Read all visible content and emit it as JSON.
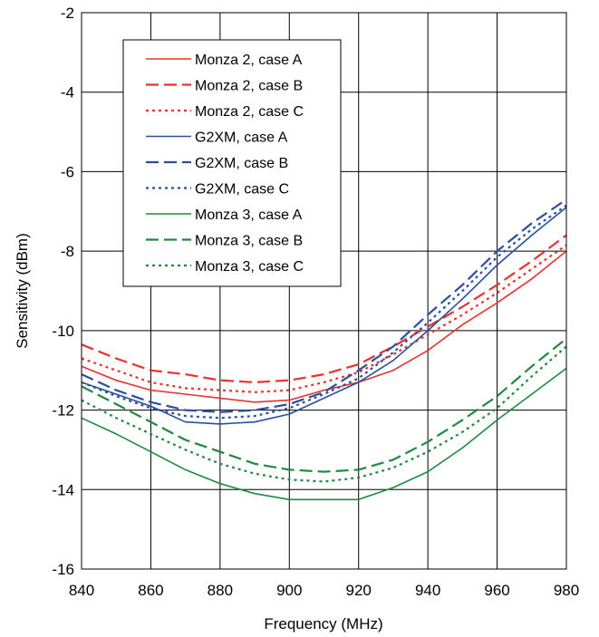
{
  "chart_data": {
    "type": "line",
    "xlabel": "Frequency (MHz)",
    "ylabel": "Sensitivity (dBm)",
    "xlim": [
      840,
      980
    ],
    "ylim": [
      -16,
      -2
    ],
    "xticks": [
      "840",
      "860",
      "880",
      "900",
      "920",
      "940",
      "960",
      "980"
    ],
    "yticks": [
      "-2",
      "-4",
      "-6",
      "-8",
      "-10",
      "-12",
      "-14",
      "-16"
    ],
    "grid": true,
    "legend_position": "top-left",
    "x": [
      840,
      850,
      860,
      870,
      880,
      890,
      900,
      910,
      920,
      930,
      940,
      950,
      960,
      970,
      980
    ],
    "series": [
      {
        "name": "Monza 2, case A",
        "color": "#e8322d",
        "dash": "solid",
        "values": [
          -10.9,
          -11.25,
          -11.5,
          -11.6,
          -11.7,
          -11.8,
          -11.75,
          -11.5,
          -11.3,
          -11.0,
          -10.5,
          -9.85,
          -9.3,
          -8.7,
          -8.0
        ]
      },
      {
        "name": "Monza 2, case B",
        "color": "#e8322d",
        "dash": "long-dash",
        "values": [
          -10.35,
          -10.7,
          -11.0,
          -11.1,
          -11.25,
          -11.3,
          -11.25,
          -11.1,
          -10.85,
          -10.4,
          -9.9,
          -9.4,
          -8.85,
          -8.25,
          -7.6
        ]
      },
      {
        "name": "Monza 2, case C",
        "color": "#e8322d",
        "dash": "dot",
        "values": [
          -10.7,
          -11.0,
          -11.3,
          -11.45,
          -11.5,
          -11.55,
          -11.5,
          -11.3,
          -11.05,
          -10.6,
          -10.1,
          -9.6,
          -9.05,
          -8.45,
          -7.85
        ]
      },
      {
        "name": "G2XM, case A",
        "color": "#2a4f9e",
        "dash": "solid",
        "values": [
          -11.3,
          -11.6,
          -11.9,
          -12.3,
          -12.35,
          -12.3,
          -12.1,
          -11.7,
          -11.3,
          -10.75,
          -10.0,
          -9.2,
          -8.35,
          -7.6,
          -6.9
        ]
      },
      {
        "name": "G2XM, case B",
        "color": "#2a4f9e",
        "dash": "long-dash",
        "values": [
          -11.1,
          -11.5,
          -11.8,
          -12.0,
          -12.05,
          -12.0,
          -11.85,
          -11.55,
          -11.0,
          -10.4,
          -9.6,
          -8.85,
          -8.0,
          -7.3,
          -6.7
        ]
      },
      {
        "name": "G2XM, case C",
        "color": "#2a4f9e",
        "dash": "dot",
        "values": [
          -11.3,
          -11.65,
          -11.95,
          -12.15,
          -12.2,
          -12.15,
          -11.95,
          -11.6,
          -11.2,
          -10.55,
          -9.8,
          -9.0,
          -8.15,
          -7.45,
          -6.85
        ]
      },
      {
        "name": "Monza 3, case A",
        "color": "#1f8a3e",
        "dash": "solid",
        "values": [
          -12.2,
          -12.6,
          -13.05,
          -13.5,
          -13.85,
          -14.1,
          -14.25,
          -14.25,
          -14.25,
          -13.95,
          -13.55,
          -12.95,
          -12.25,
          -11.6,
          -10.95
        ]
      },
      {
        "name": "Monza 3, case B",
        "color": "#1f8a3e",
        "dash": "long-dash",
        "values": [
          -11.4,
          -11.85,
          -12.3,
          -12.75,
          -13.05,
          -13.35,
          -13.5,
          -13.55,
          -13.5,
          -13.25,
          -12.8,
          -12.25,
          -11.65,
          -10.9,
          -10.2
        ]
      },
      {
        "name": "Monza 3, case C",
        "color": "#1f8a3e",
        "dash": "dot",
        "values": [
          -11.75,
          -12.2,
          -12.6,
          -13.0,
          -13.35,
          -13.6,
          -13.75,
          -13.8,
          -13.7,
          -13.45,
          -13.05,
          -12.55,
          -11.95,
          -11.15,
          -10.4
        ]
      }
    ]
  }
}
